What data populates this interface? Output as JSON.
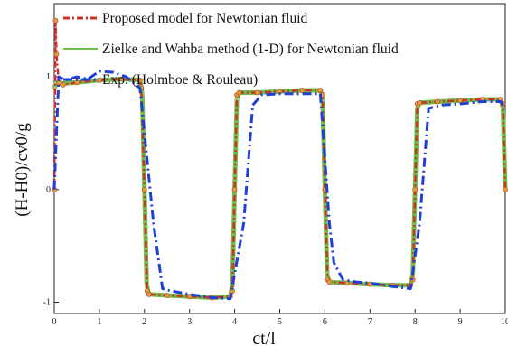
{
  "chart_data": {
    "type": "line",
    "title": "",
    "xlabel": "ct/l",
    "ylabel": "(H-H0)/cv0/g",
    "xlim": [
      0,
      10
    ],
    "ylim": [
      -1.1,
      1.65
    ],
    "xticks": [
      "0",
      "1",
      "2",
      "3",
      "4",
      "5",
      "6",
      "7",
      "8",
      "9",
      "10"
    ],
    "yticks": [
      {
        "value": 1,
        "label": "1"
      },
      {
        "value": 0,
        "label": "0"
      },
      {
        "value": -1,
        "label": "-1"
      }
    ],
    "grid": false,
    "legend_position": "top-left",
    "series": [
      {
        "name": "Proposed model for Newtonian fluid",
        "color": "#d0302a",
        "style": "dash-dot",
        "x": [
          0,
          0.03,
          0.05,
          0.1,
          0.2,
          0.5,
          1.0,
          1.5,
          1.9,
          1.93,
          2.0,
          2.06,
          2.1,
          2.5,
          3.0,
          3.5,
          3.9,
          3.95,
          4.0,
          4.05,
          4.1,
          4.5,
          5.0,
          5.5,
          5.9,
          5.95,
          6.0,
          6.06,
          6.1,
          6.5,
          7.0,
          7.5,
          7.9,
          7.95,
          8.0,
          8.05,
          8.1,
          8.5,
          9.0,
          9.5,
          9.9,
          9.95,
          10.0
        ],
        "y": [
          0,
          1.5,
          1.2,
          0.95,
          0.93,
          0.95,
          0.97,
          0.98,
          0.97,
          0.9,
          0.0,
          -0.9,
          -0.93,
          -0.94,
          -0.95,
          -0.96,
          -0.95,
          -0.9,
          0.0,
          0.84,
          0.86,
          0.86,
          0.87,
          0.88,
          0.88,
          0.84,
          0.0,
          -0.8,
          -0.82,
          -0.83,
          -0.84,
          -0.85,
          -0.85,
          -0.8,
          0.0,
          0.76,
          0.77,
          0.78,
          0.79,
          0.8,
          0.8,
          0.76,
          0.0
        ]
      },
      {
        "name": "Zielke and Wahba method (1-D) for Newtonian fluid",
        "color": "#6cc04a",
        "style": "solid-markers",
        "x": [
          0,
          0.05,
          0.1,
          0.5,
          1.0,
          1.5,
          1.9,
          1.95,
          2.0,
          2.05,
          2.1,
          2.5,
          3.0,
          3.5,
          3.9,
          3.95,
          4.0,
          4.05,
          4.1,
          4.5,
          5.0,
          5.5,
          5.9,
          5.95,
          6.0,
          6.05,
          6.1,
          6.5,
          7.0,
          7.5,
          7.9,
          7.95,
          8.0,
          8.05,
          8.1,
          8.5,
          9.0,
          9.5,
          9.9,
          9.95,
          10.0
        ],
        "y": [
          0.9,
          0.95,
          0.94,
          0.95,
          0.97,
          0.98,
          0.97,
          0.85,
          0.0,
          -0.85,
          -0.93,
          -0.94,
          -0.95,
          -0.96,
          -0.95,
          -0.85,
          0.0,
          0.8,
          0.86,
          0.86,
          0.87,
          0.88,
          0.88,
          0.8,
          0.0,
          -0.75,
          -0.82,
          -0.83,
          -0.84,
          -0.85,
          -0.85,
          -0.75,
          0.0,
          0.72,
          0.77,
          0.78,
          0.79,
          0.8,
          0.8,
          0.72,
          0.0
        ]
      },
      {
        "name": "Exp. (Holmboe & Rouleau)",
        "color": "#1f3fd6",
        "style": "dash-dot",
        "x": [
          0,
          0.1,
          0.25,
          0.5,
          0.75,
          1.0,
          1.3,
          1.6,
          1.9,
          2.2,
          2.4,
          2.6,
          3.0,
          3.5,
          3.9,
          4.2,
          4.4,
          4.6,
          5.0,
          5.5,
          5.9,
          6.1,
          6.2,
          6.4,
          6.7,
          7.0,
          7.5,
          7.9,
          8.1,
          8.3,
          8.6,
          9.0,
          9.5,
          9.9,
          10.0
        ],
        "y": [
          0.0,
          1.0,
          0.97,
          1.0,
          0.98,
          1.05,
          1.04,
          1.0,
          0.9,
          -0.3,
          -0.88,
          -0.9,
          -0.93,
          -0.96,
          -0.97,
          -0.3,
          0.75,
          0.84,
          0.85,
          0.85,
          0.85,
          -0.3,
          -0.65,
          -0.8,
          -0.82,
          -0.83,
          -0.86,
          -0.88,
          -0.3,
          0.72,
          0.75,
          0.76,
          0.78,
          0.78,
          0.72
        ]
      }
    ]
  }
}
